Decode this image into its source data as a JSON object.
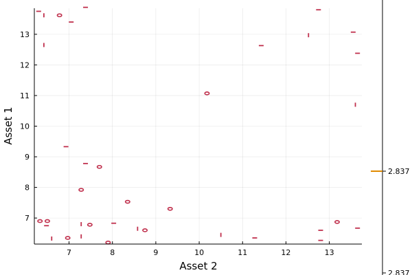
{
  "chart_data": {
    "type": "contour",
    "xlabel": "Asset 2",
    "ylabel": "Asset 1",
    "xlim": [
      6.2,
      13.75
    ],
    "ylim": [
      6.15,
      13.85
    ],
    "xticks": [
      7,
      8,
      9,
      10,
      11,
      12,
      13
    ],
    "yticks": [
      7,
      8,
      9,
      10,
      11,
      12,
      13
    ],
    "grid": true,
    "legend": "none",
    "series_color": "#c0304d",
    "colorbar": {
      "value_label": "2.837",
      "bottom_label": "2.837",
      "color": "#e08a00"
    },
    "contour_segments": [
      {
        "x": 6.3,
        "y": 13.75,
        "kind": "h"
      },
      {
        "x": 6.42,
        "y": 13.62,
        "kind": "v"
      },
      {
        "x": 6.78,
        "y": 13.62,
        "kind": "blob"
      },
      {
        "x": 7.05,
        "y": 13.4,
        "kind": "h"
      },
      {
        "x": 7.38,
        "y": 13.88,
        "kind": "h"
      },
      {
        "x": 6.42,
        "y": 12.65,
        "kind": "v"
      },
      {
        "x": 12.75,
        "y": 13.8,
        "kind": "h"
      },
      {
        "x": 12.52,
        "y": 12.97,
        "kind": "v"
      },
      {
        "x": 13.55,
        "y": 13.07,
        "kind": "h"
      },
      {
        "x": 11.43,
        "y": 12.63,
        "kind": "h"
      },
      {
        "x": 13.65,
        "y": 12.38,
        "kind": "h"
      },
      {
        "x": 10.18,
        "y": 11.07,
        "kind": "blob"
      },
      {
        "x": 13.6,
        "y": 10.7,
        "kind": "v"
      },
      {
        "x": 6.93,
        "y": 9.33,
        "kind": "h"
      },
      {
        "x": 7.38,
        "y": 8.78,
        "kind": "h"
      },
      {
        "x": 7.7,
        "y": 8.67,
        "kind": "blob"
      },
      {
        "x": 7.28,
        "y": 7.92,
        "kind": "blob"
      },
      {
        "x": 8.35,
        "y": 7.53,
        "kind": "blob"
      },
      {
        "x": 9.33,
        "y": 7.3,
        "kind": "blob"
      },
      {
        "x": 6.33,
        "y": 6.9,
        "kind": "blob"
      },
      {
        "x": 6.5,
        "y": 6.9,
        "kind": "blob"
      },
      {
        "x": 6.48,
        "y": 6.75,
        "kind": "h"
      },
      {
        "x": 7.28,
        "y": 6.8,
        "kind": "v"
      },
      {
        "x": 7.48,
        "y": 6.78,
        "kind": "blob"
      },
      {
        "x": 8.03,
        "y": 6.83,
        "kind": "h"
      },
      {
        "x": 8.58,
        "y": 6.65,
        "kind": "v"
      },
      {
        "x": 8.75,
        "y": 6.6,
        "kind": "blob"
      },
      {
        "x": 7.28,
        "y": 6.4,
        "kind": "v"
      },
      {
        "x": 6.6,
        "y": 6.33,
        "kind": "v"
      },
      {
        "x": 6.97,
        "y": 6.35,
        "kind": "blob"
      },
      {
        "x": 7.9,
        "y": 6.2,
        "kind": "blob"
      },
      {
        "x": 10.5,
        "y": 6.45,
        "kind": "v"
      },
      {
        "x": 11.28,
        "y": 6.35,
        "kind": "h"
      },
      {
        "x": 12.8,
        "y": 6.6,
        "kind": "h"
      },
      {
        "x": 12.8,
        "y": 6.27,
        "kind": "h"
      },
      {
        "x": 13.18,
        "y": 6.87,
        "kind": "blob"
      },
      {
        "x": 13.65,
        "y": 6.67,
        "kind": "h"
      }
    ]
  }
}
